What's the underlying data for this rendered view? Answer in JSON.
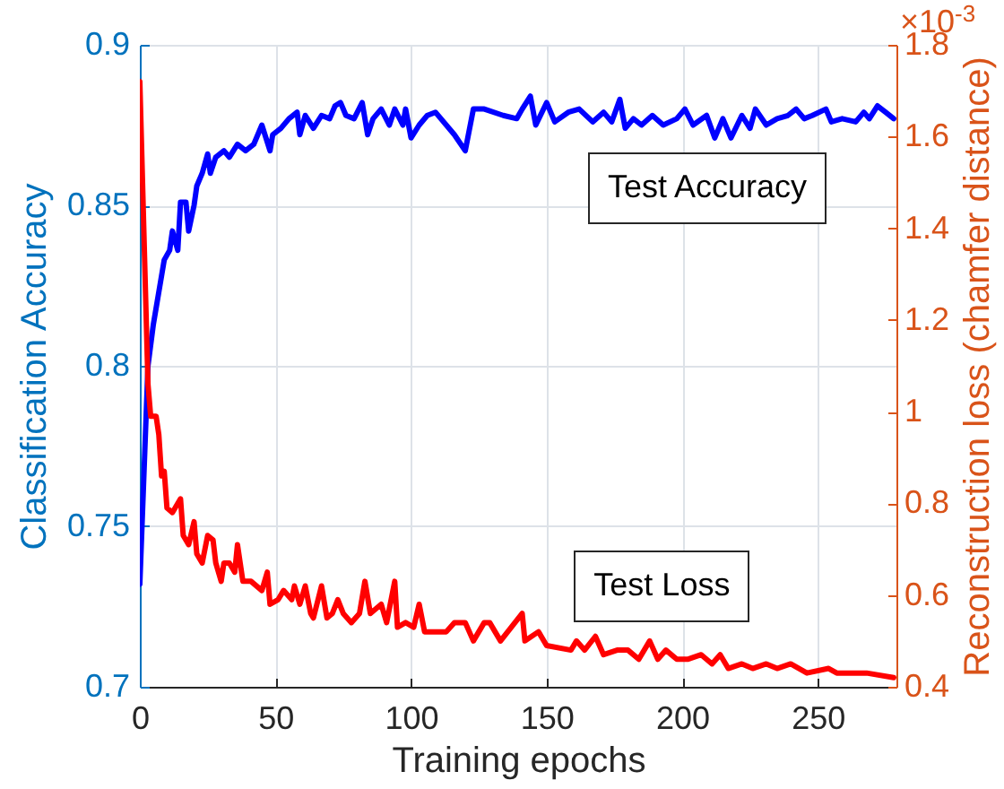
{
  "chart_data": {
    "type": "line",
    "xlabel": "Training epochs",
    "ylabel": "Classification Accuracy",
    "y2label": "Reconstruction loss (chamfer distance)",
    "annotations": [
      "×10$^{-3}$"
    ],
    "xlim": [
      0,
      279
    ],
    "xticks": [
      0,
      50,
      100,
      150,
      200,
      250
    ],
    "ylim": [
      0.7,
      0.9
    ],
    "yticks": [
      0.7,
      0.75,
      0.8,
      0.85,
      0.9
    ],
    "y2lim": [
      0.4,
      1.8
    ],
    "y2ticks": [
      0.4,
      0.6,
      0.8,
      1,
      1.2,
      1.4,
      1.6,
      1.8
    ],
    "grid": true,
    "series": [
      {
        "name": "Test Accuracy",
        "color": "#0000ff",
        "x": [
          0,
          3,
          5,
          8,
          9,
          11,
          12,
          14,
          15,
          17,
          18,
          20,
          21,
          23,
          25,
          26,
          28,
          31,
          33,
          36,
          39,
          42,
          45,
          48,
          49,
          52,
          55,
          58,
          59,
          61,
          64,
          67,
          70,
          72,
          74,
          76,
          79,
          82,
          84,
          86,
          89,
          92,
          94,
          97,
          98,
          100,
          103,
          106,
          109,
          116,
          120,
          123,
          127,
          134,
          139,
          141,
          144,
          146,
          150,
          153,
          158,
          162,
          167,
          171,
          174,
          177,
          179,
          182,
          185,
          189,
          193,
          198,
          201,
          204,
          209,
          212,
          215,
          218,
          222,
          225,
          227,
          231,
          235,
          239,
          242,
          245,
          248,
          253,
          255,
          259,
          264,
          267,
          269,
          272,
          275,
          278
        ],
        "values": [
          0.732,
          0.8,
          0.813,
          0.828,
          0.833,
          0.836,
          0.842,
          0.836,
          0.851,
          0.851,
          0.842,
          0.85,
          0.856,
          0.86,
          0.866,
          0.86,
          0.865,
          0.867,
          0.865,
          0.869,
          0.867,
          0.869,
          0.875,
          0.867,
          0.872,
          0.874,
          0.877,
          0.879,
          0.872,
          0.878,
          0.874,
          0.878,
          0.877,
          0.881,
          0.882,
          0.878,
          0.877,
          0.882,
          0.872,
          0.877,
          0.88,
          0.875,
          0.88,
          0.875,
          0.88,
          0.871,
          0.875,
          0.878,
          0.879,
          0.872,
          0.867,
          0.88,
          0.88,
          0.878,
          0.877,
          0.88,
          0.884,
          0.875,
          0.882,
          0.876,
          0.879,
          0.88,
          0.876,
          0.879,
          0.876,
          0.883,
          0.874,
          0.877,
          0.875,
          0.878,
          0.875,
          0.877,
          0.88,
          0.875,
          0.878,
          0.871,
          0.877,
          0.871,
          0.878,
          0.874,
          0.88,
          0.875,
          0.877,
          0.878,
          0.88,
          0.877,
          0.878,
          0.88,
          0.876,
          0.877,
          0.876,
          0.879,
          0.877,
          0.881,
          0.879,
          0.877
        ]
      },
      {
        "name": "Test Loss",
        "color": "#ff0000",
        "axis": "y2",
        "x": [
          0,
          3,
          4,
          6,
          7,
          8,
          9,
          10,
          12,
          15,
          16,
          18,
          20,
          21,
          23,
          25,
          27,
          28,
          30,
          31,
          33,
          35,
          36,
          38,
          41,
          45,
          47,
          48,
          51,
          53,
          56,
          57,
          59,
          61,
          63,
          64,
          67,
          69,
          71,
          73,
          75,
          78,
          81,
          83,
          85,
          89,
          91,
          94,
          95,
          98,
          101,
          103,
          105,
          113,
          116,
          120,
          123,
          127,
          129,
          133,
          141,
          142,
          147,
          150,
          159,
          161,
          164,
          168,
          171,
          176,
          180,
          184,
          188,
          191,
          194,
          198,
          202,
          207,
          211,
          214,
          217,
          222,
          226,
          231,
          235,
          240,
          246,
          254,
          257,
          261,
          268,
          278
        ],
        "values": [
          1.72,
          1.06,
          0.99,
          0.99,
          0.95,
          0.86,
          0.87,
          0.79,
          0.78,
          0.81,
          0.73,
          0.71,
          0.76,
          0.69,
          0.67,
          0.73,
          0.72,
          0.67,
          0.63,
          0.67,
          0.67,
          0.65,
          0.71,
          0.63,
          0.63,
          0.61,
          0.65,
          0.58,
          0.59,
          0.61,
          0.59,
          0.62,
          0.58,
          0.62,
          0.56,
          0.55,
          0.62,
          0.55,
          0.56,
          0.59,
          0.56,
          0.54,
          0.56,
          0.63,
          0.56,
          0.58,
          0.54,
          0.63,
          0.53,
          0.54,
          0.53,
          0.58,
          0.52,
          0.52,
          0.54,
          0.54,
          0.5,
          0.54,
          0.54,
          0.5,
          0.56,
          0.5,
          0.52,
          0.49,
          0.48,
          0.5,
          0.48,
          0.51,
          0.47,
          0.48,
          0.48,
          0.46,
          0.5,
          0.46,
          0.48,
          0.46,
          0.46,
          0.47,
          0.45,
          0.47,
          0.44,
          0.45,
          0.44,
          0.45,
          0.44,
          0.45,
          0.43,
          0.44,
          0.43,
          0.43,
          0.43,
          0.42
        ]
      }
    ]
  }
}
